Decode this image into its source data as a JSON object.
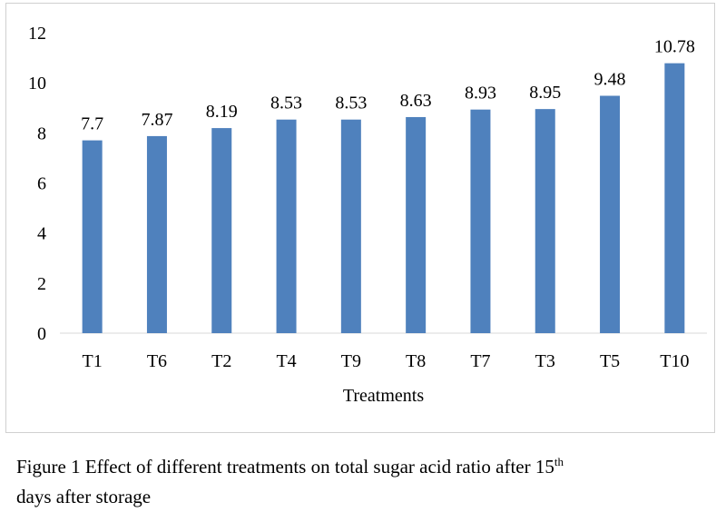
{
  "chart_data": {
    "type": "bar",
    "title": "",
    "xlabel": "Treatments",
    "ylabel": "",
    "categories": [
      "T1",
      "T6",
      "T2",
      "T4",
      "T9",
      "T8",
      "T7",
      "T3",
      "T5",
      "T10"
    ],
    "values": [
      7.7,
      7.87,
      8.19,
      8.53,
      8.53,
      8.63,
      8.93,
      8.95,
      9.48,
      10.78
    ],
    "data_labels": [
      "7.7",
      "7.87",
      "8.19",
      "8.53",
      "8.53",
      "8.63",
      "8.93",
      "8.95",
      "9.48",
      "10.78"
    ],
    "ylim": [
      0,
      12
    ],
    "yticks": [
      0,
      2,
      4,
      6,
      8,
      10,
      12
    ],
    "grid": false,
    "legend": "none",
    "bar_color": "#4f81bd"
  },
  "caption": {
    "main": "Figure 1 Effect of different treatments on total sugar acid ratio after 15",
    "superscript": "th",
    "line2": "days after storage"
  }
}
